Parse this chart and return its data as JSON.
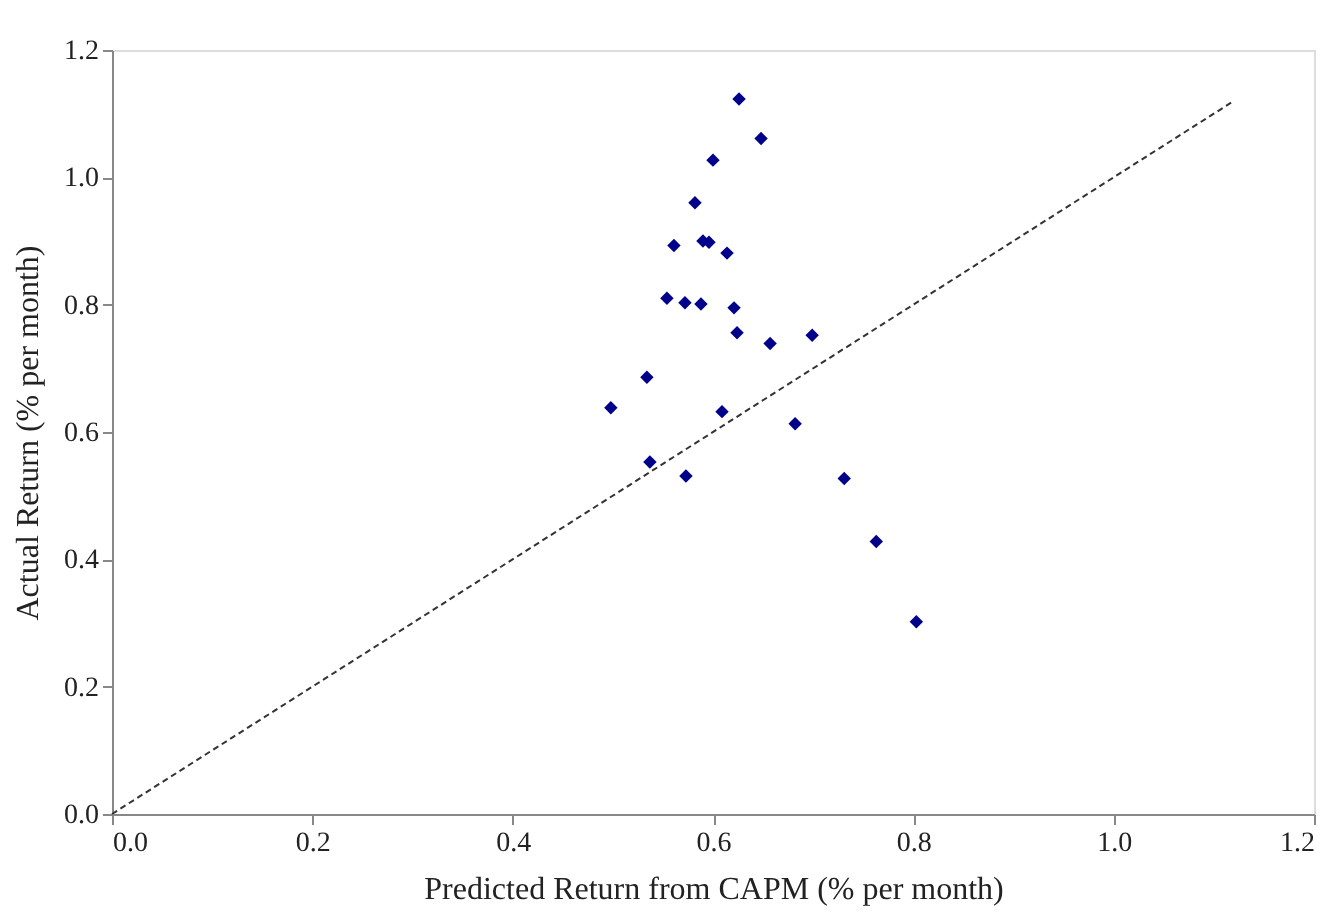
{
  "chart_data": {
    "type": "scatter",
    "xlabel": "Predicted Return from CAPM (% per month)",
    "ylabel": "Actual Return (% per month)",
    "xlim": [
      0,
      1.2
    ],
    "ylim": [
      0,
      1.2
    ],
    "xticks": [
      {
        "value": 0,
        "label": "0.0"
      },
      {
        "value": 0.2,
        "label": "0.2"
      },
      {
        "value": 0.4,
        "label": "0.4"
      },
      {
        "value": 0.6,
        "label": "0.6"
      },
      {
        "value": 0.8,
        "label": "0.8"
      },
      {
        "value": 1,
        "label": "1.0"
      },
      {
        "value": 1.2,
        "label": "1.2"
      }
    ],
    "yticks": [
      {
        "value": 0,
        "label": "0.0"
      },
      {
        "value": 0.2,
        "label": "0.2"
      },
      {
        "value": 0.4,
        "label": "0.4"
      },
      {
        "value": 0.6,
        "label": "0.6"
      },
      {
        "value": 0.8,
        "label": "0.8"
      },
      {
        "value": 1,
        "label": "1.0"
      },
      {
        "value": 1.2,
        "label": "1.2"
      }
    ],
    "grid": false,
    "series": [
      {
        "color": "#00008b",
        "marker": "diamond",
        "x": [
          0.626,
          0.648,
          0.6,
          0.582,
          0.561,
          0.59,
          0.596,
          0.614,
          0.554,
          0.572,
          0.588,
          0.621,
          0.624,
          0.657,
          0.699,
          0.534,
          0.498,
          0.609,
          0.682,
          0.537,
          0.573,
          0.731,
          0.763,
          0.803
        ],
        "values": [
          1.123,
          1.061,
          1.027,
          0.96,
          0.893,
          0.9,
          0.898,
          0.881,
          0.81,
          0.803,
          0.801,
          0.795,
          0.756,
          0.739,
          0.752,
          0.686,
          0.638,
          0.632,
          0.613,
          0.553,
          0.531,
          0.527,
          0.428,
          0.302
        ]
      },
      {
        "type": "line",
        "color": "#333333",
        "line_style": "dashed",
        "marker": "none",
        "x": [
          0,
          1.12
        ],
        "values": [
          0,
          1.12
        ]
      }
    ]
  }
}
